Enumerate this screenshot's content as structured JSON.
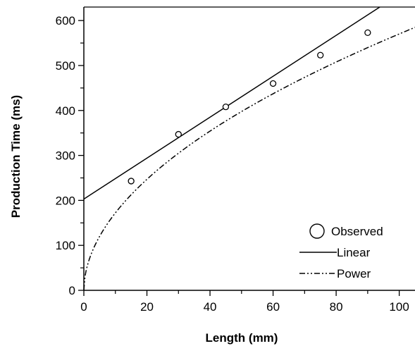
{
  "chart_data": {
    "type": "scatter",
    "title": "",
    "xlabel": "Length (mm)",
    "ylabel": "Production Time (ms)",
    "xlim": [
      0,
      105
    ],
    "ylim": [
      0,
      630
    ],
    "xticks": [
      0,
      20,
      40,
      60,
      80,
      100
    ],
    "yticks": [
      0,
      100,
      200,
      300,
      400,
      500,
      600
    ],
    "grid": false,
    "legend_position": "bottom-right",
    "series": [
      {
        "name": "Observed",
        "kind": "points",
        "x": [
          15,
          30,
          45,
          60,
          75,
          90
        ],
        "y": [
          243,
          347,
          408,
          460,
          523,
          573
        ]
      },
      {
        "name": "Linear",
        "kind": "line",
        "style": "solid",
        "intercept": 203,
        "slope": 4.55
      },
      {
        "name": "Power",
        "kind": "line",
        "style": "dash-dot-dot",
        "coefficient": 52,
        "exponent": 0.52
      }
    ]
  }
}
